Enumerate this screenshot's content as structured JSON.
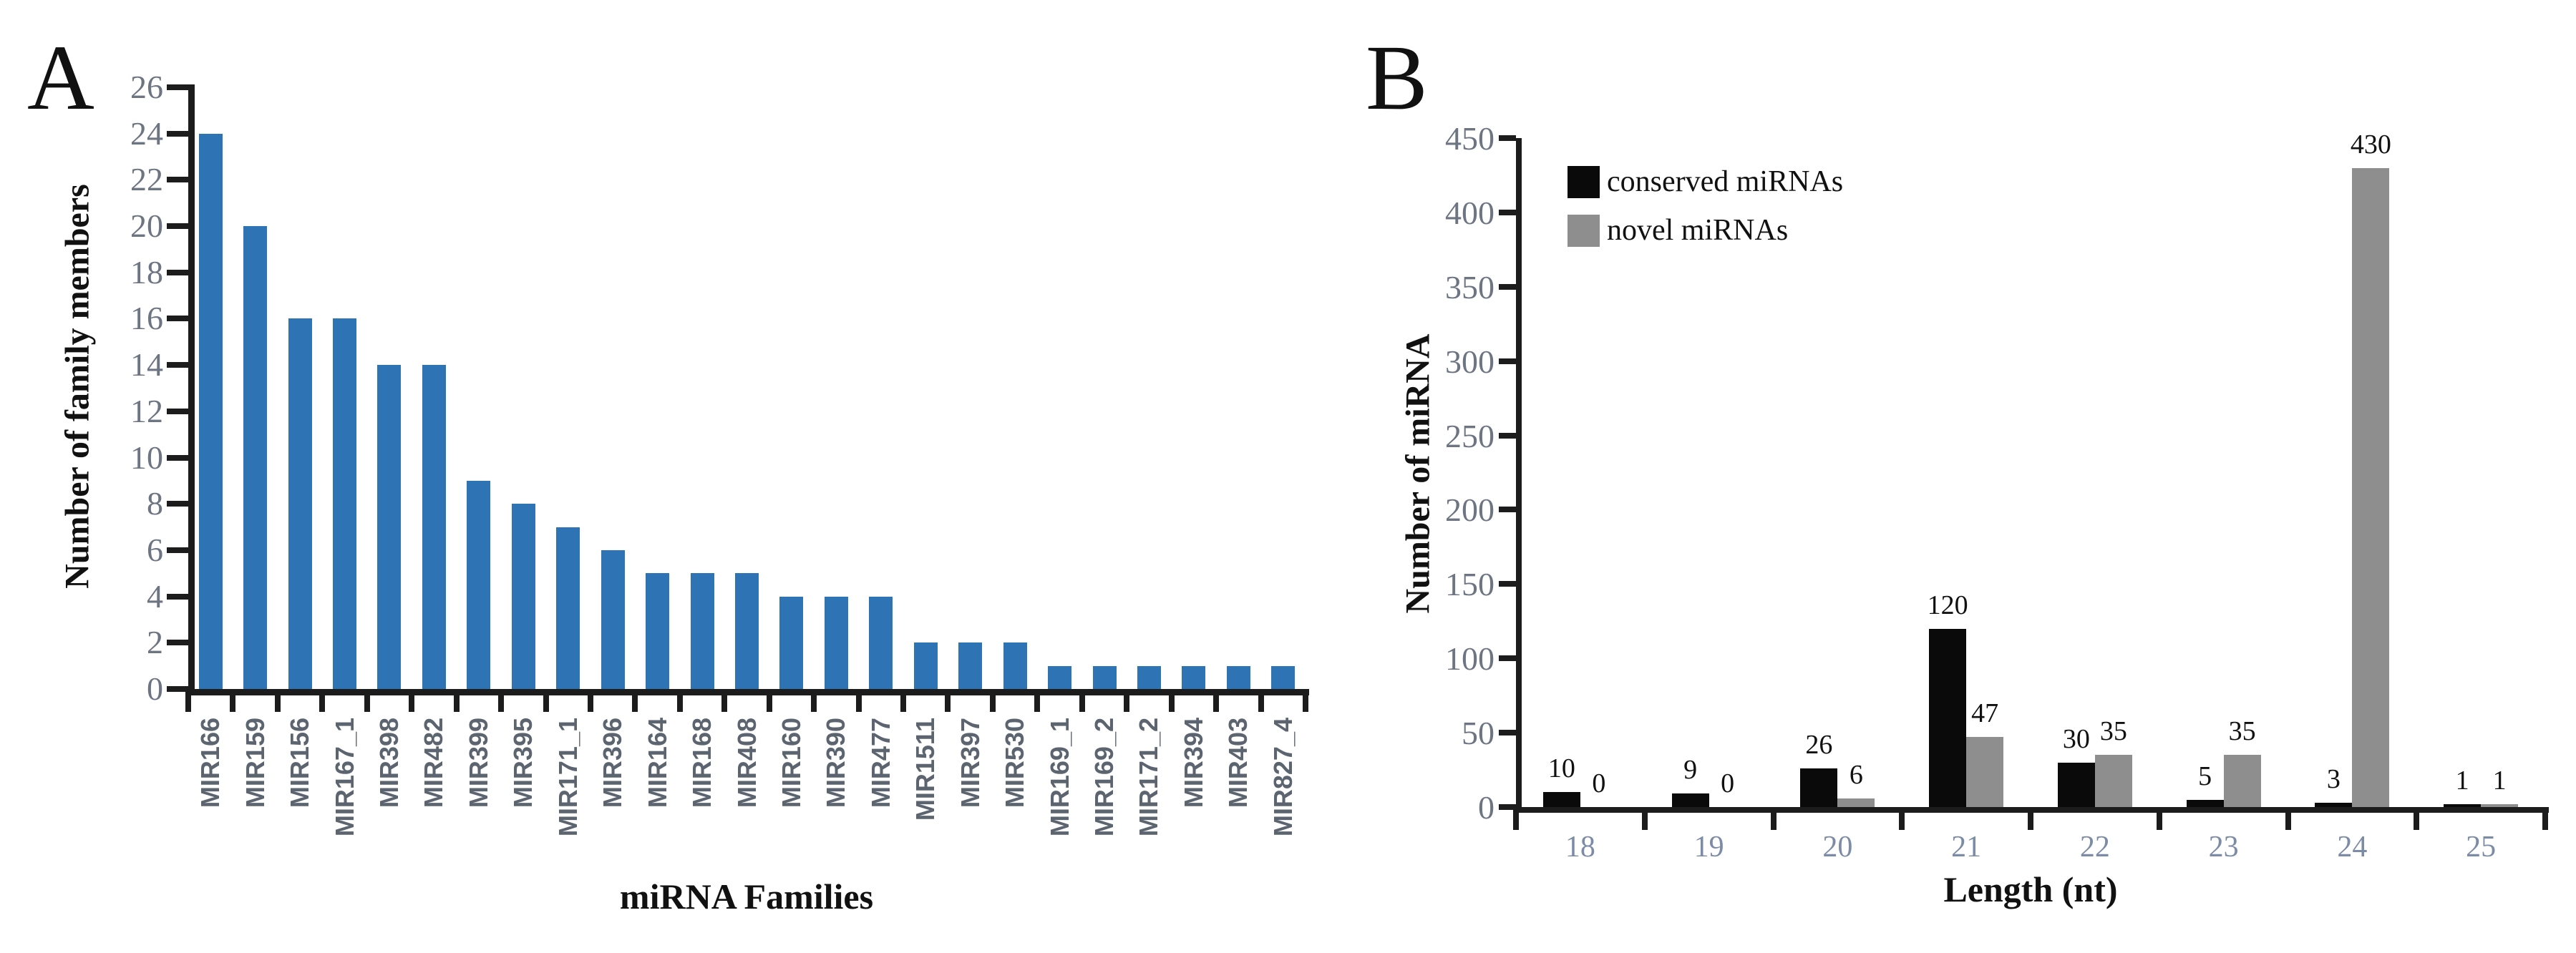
{
  "figure": {
    "panels": [
      {
        "letter": "A"
      },
      {
        "letter": "B"
      }
    ]
  },
  "colors": {
    "background": "#ffffff",
    "axis": "#1c1c1c",
    "tick_label": "#6d7482",
    "panel_b_xtick_label": "#7d8ca6",
    "category_label": "#5c6470",
    "text": "#111111",
    "bar_blue": "#2E74B5",
    "bar_black": "#0a0a0a",
    "bar_gray": "#8e8e8e"
  },
  "chart_data": [
    {
      "panel": "A",
      "type": "bar",
      "title": "",
      "xlabel": "miRNA Families",
      "ylabel": "Number of family members",
      "ylim": [
        0,
        26
      ],
      "ytick_step": 2,
      "grid": false,
      "legend_position": "none",
      "bar_color": "#2E74B5",
      "categories": [
        "MIR166",
        "MIR159",
        "MIR156",
        "MIR167_1",
        "MIR398",
        "MIR482",
        "MIR399",
        "MIR395",
        "MIR171_1",
        "MIR396",
        "MIR164",
        "MIR168",
        "MIR408",
        "MIR160",
        "MIR390",
        "MIR477",
        "MIR1511",
        "MIR397",
        "MIR530",
        "MIR169_1",
        "MIR169_2",
        "MIR171_2",
        "MIR394",
        "MIR403",
        "MIR827_4"
      ],
      "values": [
        24,
        20,
        16,
        16,
        14,
        14,
        9,
        8,
        7,
        6,
        5,
        5,
        5,
        4,
        4,
        4,
        2,
        2,
        2,
        1,
        1,
        1,
        1,
        1,
        1
      ]
    },
    {
      "panel": "B",
      "type": "bar",
      "title": "",
      "xlabel": "Length (nt)",
      "ylabel": "Number of miRNA",
      "ylim": [
        0,
        450
      ],
      "ytick_step": 50,
      "grid": false,
      "data_labels": true,
      "legend_position": "upper-left",
      "categories": [
        "18",
        "19",
        "20",
        "21",
        "22",
        "23",
        "24",
        "25"
      ],
      "series": [
        {
          "name": "conserved miRNAs",
          "color": "#0a0a0a",
          "values": [
            10,
            9,
            26,
            120,
            30,
            5,
            3,
            1
          ]
        },
        {
          "name": "novel miRNAs",
          "color": "#8e8e8e",
          "values": [
            0,
            0,
            6,
            47,
            35,
            35,
            430,
            1
          ]
        }
      ]
    }
  ]
}
